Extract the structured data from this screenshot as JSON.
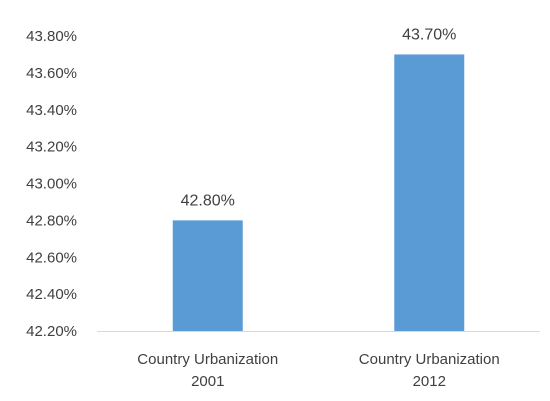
{
  "chart_data": {
    "type": "bar",
    "title": "",
    "xlabel": "",
    "ylabel": "",
    "categories": [
      [
        "Country Urbanization",
        "2001"
      ],
      [
        "Country Urbanization",
        "2012"
      ]
    ],
    "values": [
      42.8,
      43.7
    ],
    "data_labels": [
      "42.80%",
      "43.70%"
    ],
    "ylim": [
      42.2,
      43.8
    ],
    "yticks": [
      42.2,
      42.4,
      42.6,
      42.8,
      43.0,
      43.2,
      43.4,
      43.6,
      43.8
    ],
    "ytick_labels": [
      "42.20%",
      "42.40%",
      "42.60%",
      "42.80%",
      "43.00%",
      "43.20%",
      "43.40%",
      "43.60%",
      "43.80%"
    ],
    "grid": false,
    "legend": "none",
    "colors": {
      "bar": "#5b9bd5",
      "axis": "#d9d9d9",
      "text": "#404040"
    }
  }
}
